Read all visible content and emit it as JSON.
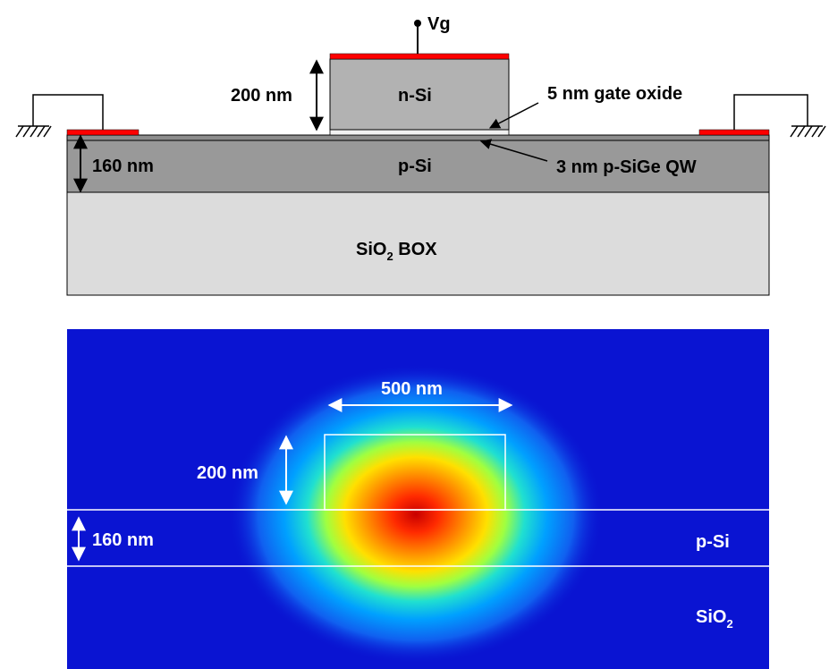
{
  "cross_section": {
    "gate_terminal": "Vg",
    "gate_height": "200 nm",
    "gate_material": "n-Si",
    "gate_oxide": "5 nm gate oxide",
    "body_thickness": "160 nm",
    "body_material": "p-Si",
    "quantum_well": "3 nm p-SiGe QW",
    "box_main": "SiO",
    "box_sub": "2",
    "box_suffix": " BOX"
  },
  "mode_profile": {
    "width_label": "500 nm",
    "height_label": "200 nm",
    "slab_label": "160 nm",
    "slab_material": "p-Si",
    "substrate_main": "SiO",
    "substrate_sub": "2"
  },
  "colors": {
    "contact": "#ff0000",
    "gate_fill": "#b2b2b2",
    "body_fill": "#999999",
    "box_fill": "#dcdcdc",
    "field_background": "#0a14d2"
  }
}
